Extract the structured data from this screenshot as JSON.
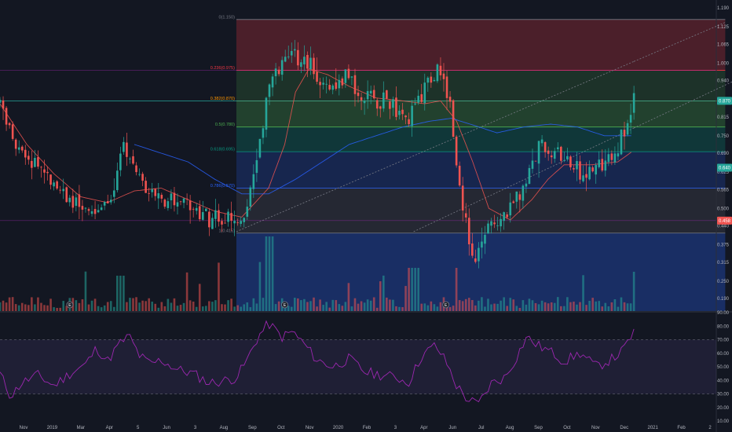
{
  "colors": {
    "background": "#131722",
    "up": "#26a69a",
    "down": "#ef5350",
    "rsi_line": "#9c27b0",
    "rsi_band": "#7e57c2",
    "ma_slow": "#2962ff",
    "ma_fast": "#ef5350",
    "trend_line": "#787b86",
    "axis_text": "#b2b5be"
  },
  "chart_data": {
    "type": "candlestick",
    "price_axis": {
      "ticks": [
        "1.190",
        "1.125",
        "1.065",
        "1.000",
        "0.940",
        "0.875",
        "0.815",
        "0.750",
        "0.690",
        "0.625",
        "0.565",
        "0.500",
        "0.440",
        "0.375",
        "0.315",
        "0.250",
        "0.190"
      ],
      "ylim": [
        0.16,
        1.2
      ]
    },
    "rsi_axis": {
      "ticks": [
        "90.00",
        "80.00",
        "70.00",
        "60.00",
        "50.00",
        "40.00",
        "30.00",
        "20.00",
        "10.00"
      ],
      "ylim": [
        10,
        90
      ],
      "upper_band": 70,
      "lower_band": 30
    },
    "time_axis": [
      "Nov",
      "2019",
      "Mar",
      "Apr",
      "5",
      "Jun",
      "3",
      "Aug",
      "Sep",
      "Oct",
      "Nov",
      "2020",
      "Feb",
      "3",
      "Apr",
      "Jun",
      "Jul",
      "Aug",
      "Sep",
      "Oct",
      "Nov",
      "Dec",
      "2021",
      "Feb",
      "2"
    ],
    "fib_levels": [
      {
        "label": "0(1.150)",
        "price": 1.15,
        "color": "#787b86",
        "fill": "rgba(242,54,69,0.25)"
      },
      {
        "label": "0.236(0.975)",
        "price": 0.975,
        "color": "#f23645",
        "fill": "rgba(76,175,80,0.18)"
      },
      {
        "label": "0.382(0.870)",
        "price": 0.87,
        "color": "#ff9800",
        "fill": "rgba(76,175,80,0.28)"
      },
      {
        "label": "0.5(0.780)",
        "price": 0.78,
        "color": "#4caf50",
        "fill": "rgba(8,153,129,0.25)"
      },
      {
        "label": "0.618(0.695)",
        "price": 0.695,
        "color": "#089981",
        "fill": "rgba(41,98,255,0.2)"
      },
      {
        "label": "0.786(0.570)",
        "price": 0.57,
        "color": "#2962ff",
        "fill": "rgba(120,123,134,0.18)"
      },
      {
        "label": "1(0.415)",
        "price": 0.415,
        "color": "#787b86",
        "fill": "rgba(41,98,255,0.3)"
      }
    ],
    "price_badges": [
      {
        "price": 0.87,
        "text": "0.870",
        "color": "#26a69a"
      },
      {
        "price": 0.64,
        "text": "0.640",
        "color": "#26a69a"
      },
      {
        "price": 0.458,
        "text": "0.458",
        "color": "#ef5350"
      }
    ],
    "events": [
      {
        "label": "E",
        "month": 2.6
      },
      {
        "label": "E",
        "month": 10.6
      },
      {
        "label": "E",
        "month": 16.6
      }
    ],
    "anchors": [
      [
        0,
        0.87
      ],
      [
        0.6,
        0.7
      ],
      [
        1.4,
        0.65
      ],
      [
        2.4,
        0.55
      ],
      [
        3.2,
        0.48
      ],
      [
        3.7,
        0.5
      ],
      [
        4.2,
        0.55
      ],
      [
        4.6,
        0.72
      ],
      [
        5.0,
        0.65
      ],
      [
        5.5,
        0.56
      ],
      [
        6.3,
        0.53
      ],
      [
        7.0,
        0.52
      ],
      [
        7.5,
        0.48
      ],
      [
        8.2,
        0.46
      ],
      [
        8.8,
        0.45
      ],
      [
        9.2,
        0.5
      ],
      [
        9.6,
        0.68
      ],
      [
        10.0,
        0.92
      ],
      [
        10.4,
        0.98
      ],
      [
        10.9,
        1.03
      ],
      [
        11.2,
        1.02
      ],
      [
        11.8,
        0.97
      ],
      [
        12.4,
        0.9
      ],
      [
        12.9,
        0.96
      ],
      [
        13.5,
        0.88
      ],
      [
        14.5,
        0.87
      ],
      [
        15.2,
        0.8
      ],
      [
        15.9,
        0.93
      ],
      [
        16.4,
        0.98
      ],
      [
        16.8,
        0.84
      ],
      [
        17.0,
        0.64
      ],
      [
        17.4,
        0.42
      ],
      [
        17.7,
        0.3
      ],
      [
        18.1,
        0.44
      ],
      [
        18.7,
        0.47
      ],
      [
        19.0,
        0.5
      ],
      [
        19.6,
        0.6
      ],
      [
        20.1,
        0.72
      ],
      [
        20.7,
        0.68
      ],
      [
        21.1,
        0.66
      ],
      [
        21.6,
        0.62
      ],
      [
        22.0,
        0.64
      ],
      [
        22.6,
        0.66
      ],
      [
        23.0,
        0.72
      ],
      [
        23.4,
        0.78
      ],
      [
        23.6,
        0.87
      ]
    ],
    "ma_fast_anchors": [
      [
        0,
        0.86
      ],
      [
        1.0,
        0.72
      ],
      [
        2.0,
        0.62
      ],
      [
        3.0,
        0.54
      ],
      [
        4.0,
        0.52
      ],
      [
        5.0,
        0.56
      ],
      [
        6.0,
        0.57
      ],
      [
        7.0,
        0.53
      ],
      [
        8.0,
        0.49
      ],
      [
        9.0,
        0.47
      ],
      [
        10.0,
        0.57
      ],
      [
        10.6,
        0.72
      ],
      [
        11.0,
        0.9
      ],
      [
        11.5,
        0.98
      ],
      [
        12.2,
        0.96
      ],
      [
        13.0,
        0.92
      ],
      [
        14.0,
        0.88
      ],
      [
        15.0,
        0.87
      ],
      [
        15.8,
        0.86
      ],
      [
        16.4,
        0.87
      ],
      [
        17.0,
        0.8
      ],
      [
        17.6,
        0.66
      ],
      [
        18.2,
        0.5
      ],
      [
        19.0,
        0.46
      ],
      [
        19.8,
        0.53
      ],
      [
        20.4,
        0.6
      ],
      [
        21.0,
        0.65
      ],
      [
        22.0,
        0.65
      ],
      [
        23.0,
        0.66
      ],
      [
        23.6,
        0.7
      ]
    ],
    "ma_slow_anchors": [
      [
        5.0,
        0.72
      ],
      [
        6.0,
        0.69
      ],
      [
        7.0,
        0.66
      ],
      [
        8.0,
        0.6
      ],
      [
        9.0,
        0.55
      ],
      [
        10.0,
        0.55
      ],
      [
        11.0,
        0.6
      ],
      [
        12.0,
        0.66
      ],
      [
        13.0,
        0.72
      ],
      [
        14.0,
        0.75
      ],
      [
        15.0,
        0.78
      ],
      [
        16.0,
        0.8
      ],
      [
        16.8,
        0.81
      ],
      [
        17.5,
        0.79
      ],
      [
        18.5,
        0.76
      ],
      [
        19.5,
        0.78
      ],
      [
        20.5,
        0.79
      ],
      [
        21.5,
        0.78
      ],
      [
        22.5,
        0.75
      ],
      [
        23.6,
        0.75
      ]
    ],
    "rsi_anchors": [
      [
        0,
        45
      ],
      [
        0.4,
        28
      ],
      [
        0.8,
        38
      ],
      [
        1.4,
        44
      ],
      [
        2.0,
        36
      ],
      [
        2.6,
        45
      ],
      [
        3.2,
        52
      ],
      [
        3.6,
        64
      ],
      [
        4.0,
        54
      ],
      [
        4.4,
        66
      ],
      [
        4.8,
        73
      ],
      [
        5.2,
        58
      ],
      [
        5.6,
        52
      ],
      [
        6.0,
        55
      ],
      [
        6.6,
        48
      ],
      [
        7.2,
        45
      ],
      [
        7.8,
        38
      ],
      [
        8.4,
        40
      ],
      [
        8.8,
        42
      ],
      [
        9.2,
        55
      ],
      [
        9.6,
        72
      ],
      [
        10.0,
        82
      ],
      [
        10.5,
        72
      ],
      [
        10.9,
        76
      ],
      [
        11.4,
        65
      ],
      [
        11.8,
        55
      ],
      [
        12.4,
        50
      ],
      [
        13.0,
        56
      ],
      [
        13.6,
        46
      ],
      [
        14.2,
        44
      ],
      [
        14.8,
        42
      ],
      [
        15.2,
        38
      ],
      [
        15.7,
        58
      ],
      [
        16.2,
        66
      ],
      [
        16.6,
        54
      ],
      [
        17.0,
        36
      ],
      [
        17.4,
        26
      ],
      [
        17.8,
        22
      ],
      [
        18.3,
        38
      ],
      [
        18.8,
        42
      ],
      [
        19.2,
        56
      ],
      [
        19.6,
        72
      ],
      [
        20.0,
        66
      ],
      [
        20.6,
        60
      ],
      [
        21.0,
        54
      ],
      [
        21.6,
        60
      ],
      [
        22.2,
        50
      ],
      [
        22.8,
        56
      ],
      [
        23.2,
        62
      ],
      [
        23.6,
        76
      ]
    ],
    "trend_lines": [
      {
        "from": [
          8.8,
          0.42
        ],
        "to": [
          27.0,
          1.14
        ],
        "dashed_from": 23.6
      },
      {
        "from": [
          15.4,
          0.42
        ],
        "to": [
          29.2,
          1.02
        ],
        "dashed_from": 23.6
      }
    ],
    "fib_range": {
      "start_month": 8.8,
      "end_month": 27.0
    }
  }
}
